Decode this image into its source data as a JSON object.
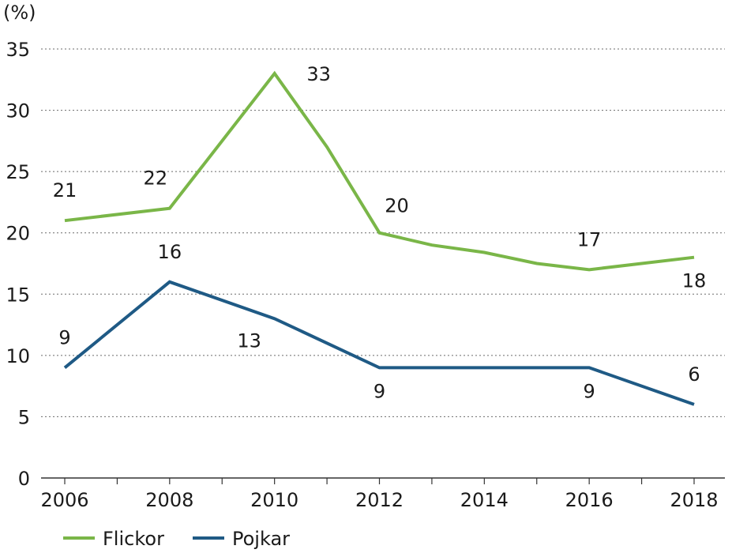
{
  "chart_data": {
    "type": "line",
    "unit_label": "(%)",
    "ylim": [
      0,
      35
    ],
    "yticks": [
      0,
      5,
      10,
      15,
      20,
      25,
      30,
      35
    ],
    "xlim": [
      2006,
      2018
    ],
    "xticks": [
      2006,
      2008,
      2010,
      2012,
      2014,
      2016,
      2018
    ],
    "grid": "horizontal-dotted",
    "legend_position": "bottom-left",
    "series": [
      {
        "name": "Flickor",
        "color": "#7ab648",
        "points": [
          {
            "x": 2006,
            "y": 21
          },
          {
            "x": 2008,
            "y": 22
          },
          {
            "x": 2010,
            "y": 33
          },
          {
            "x": 2011,
            "y": 27
          },
          {
            "x": 2012,
            "y": 20
          },
          {
            "x": 2013,
            "y": 19
          },
          {
            "x": 2014,
            "y": 18.4
          },
          {
            "x": 2015,
            "y": 17.5
          },
          {
            "x": 2016,
            "y": 17
          },
          {
            "x": 2018,
            "y": 18
          }
        ],
        "labels": [
          {
            "x": 2006,
            "y": 21,
            "text": "21",
            "pos": "above"
          },
          {
            "x": 2008,
            "y": 22,
            "text": "22",
            "pos": "above-left"
          },
          {
            "x": 2010,
            "y": 33,
            "text": "33",
            "pos": "right"
          },
          {
            "x": 2012,
            "y": 20,
            "text": "20",
            "pos": "above-right"
          },
          {
            "x": 2016,
            "y": 17,
            "text": "17",
            "pos": "above"
          },
          {
            "x": 2018,
            "y": 18,
            "text": "18",
            "pos": "below"
          }
        ]
      },
      {
        "name": "Pojkar",
        "color": "#1f5a85",
        "points": [
          {
            "x": 2006,
            "y": 9
          },
          {
            "x": 2008,
            "y": 16
          },
          {
            "x": 2010,
            "y": 13
          },
          {
            "x": 2012,
            "y": 9
          },
          {
            "x": 2014,
            "y": 9
          },
          {
            "x": 2016,
            "y": 9
          },
          {
            "x": 2018,
            "y": 6
          }
        ],
        "labels": [
          {
            "x": 2006,
            "y": 9,
            "text": "9",
            "pos": "above"
          },
          {
            "x": 2008,
            "y": 16,
            "text": "16",
            "pos": "above"
          },
          {
            "x": 2010,
            "y": 13,
            "text": "13",
            "pos": "below-left"
          },
          {
            "x": 2012,
            "y": 9,
            "text": "9",
            "pos": "below"
          },
          {
            "x": 2016,
            "y": 9,
            "text": "9",
            "pos": "below"
          },
          {
            "x": 2018,
            "y": 6,
            "text": "6",
            "pos": "above"
          }
        ]
      }
    ]
  }
}
